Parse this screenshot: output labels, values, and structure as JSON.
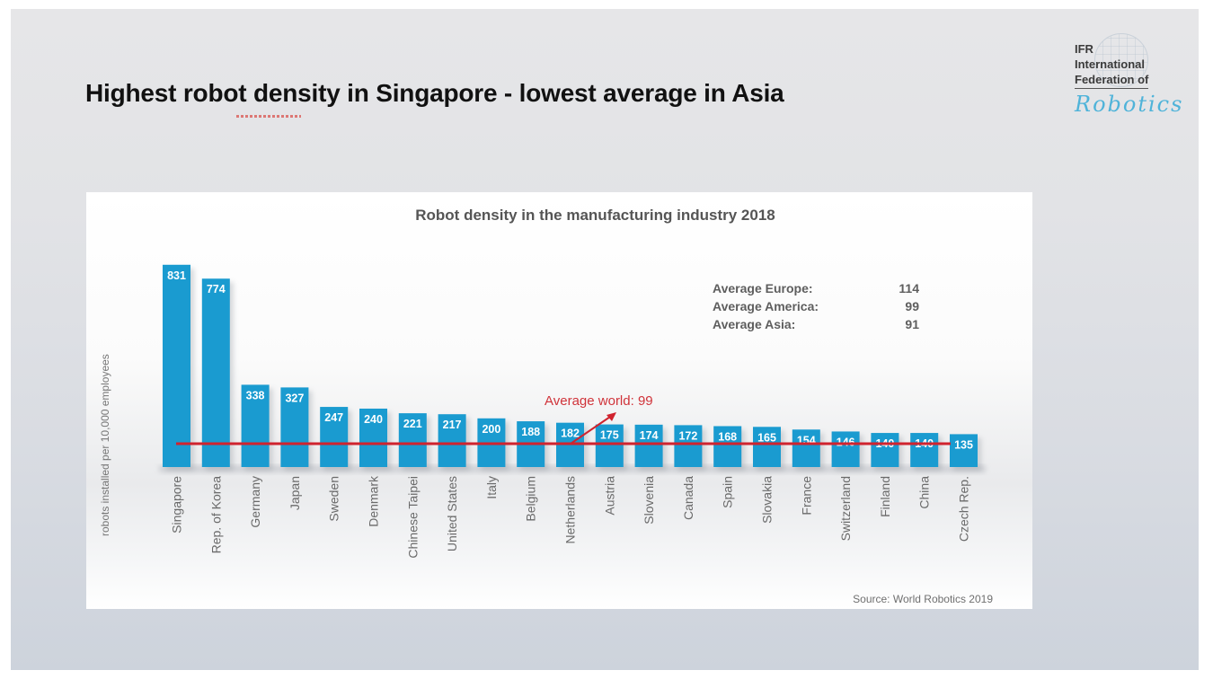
{
  "slide": {
    "title": "Highest robot density in Singapore - lowest average in Asia",
    "logo": {
      "line1": "IFR",
      "line2": "International",
      "line3": "Federation of",
      "script": "Robotics"
    }
  },
  "colors": {
    "bar": "#1a9bd0",
    "bar_label": "#ffffff",
    "world_line": "#d0232e",
    "annotation": "#d0333a"
  },
  "chart_data": {
    "type": "bar",
    "title": "Robot density in the manufacturing industry 2018",
    "xlabel": "",
    "ylabel": "robots installed per 10,000 employees",
    "ylim": [
      0,
      900
    ],
    "grid": false,
    "categories": [
      "Singapore",
      "Rep. of Korea",
      "Germany",
      "Japan",
      "Sweden",
      "Denmark",
      "Chinese Taipei",
      "United States",
      "Italy",
      "Belgium",
      "Netherlands",
      "Austria",
      "Slovenia",
      "Canada",
      "Spain",
      "Slovakia",
      "France",
      "Switzerland",
      "Finland",
      "China",
      "Czech Rep."
    ],
    "values": [
      831,
      774,
      338,
      327,
      247,
      240,
      221,
      217,
      200,
      188,
      182,
      175,
      174,
      172,
      168,
      165,
      154,
      146,
      140,
      140,
      135
    ],
    "reference_line": {
      "label": "Average world: 99",
      "value": 99
    },
    "averages": [
      {
        "label": "Average Europe:",
        "value": "114"
      },
      {
        "label": "Average America:",
        "value": "99"
      },
      {
        "label": "Average Asia:",
        "value": "91"
      }
    ],
    "source": "Source: World Robotics 2019"
  }
}
